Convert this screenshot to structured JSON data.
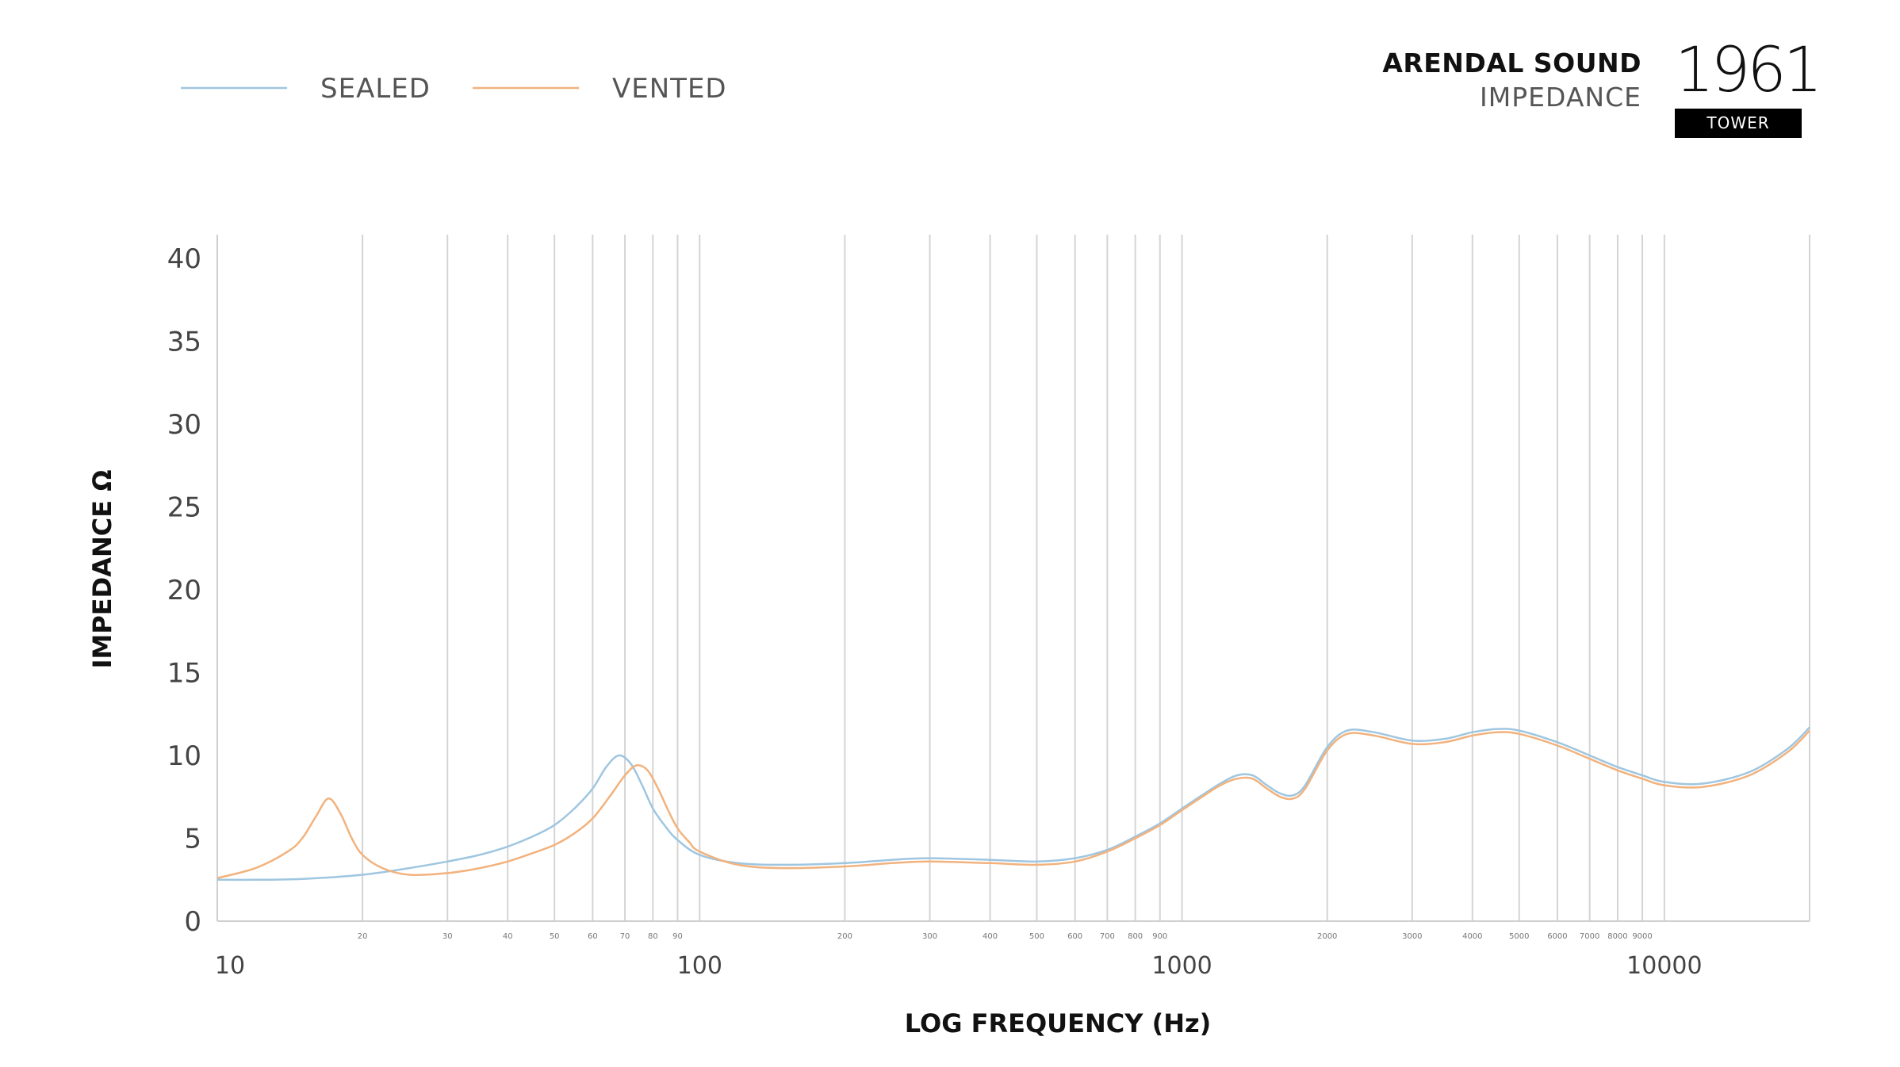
{
  "brand": {
    "name": "ARENDAL SOUND",
    "subtitle": "IMPEDANCE",
    "model": "1961",
    "model_tag": "TOWER"
  },
  "colors": {
    "sealed": "#9fc6e0",
    "vented": "#f2b27d",
    "grid": "#d4d4d4",
    "text": "#333333"
  },
  "chart_data": {
    "type": "line",
    "xlabel": "LOG FREQUENCY (Hz)",
    "ylabel": "IMPEDANCE Ω",
    "xscale": "log",
    "xlim": [
      10,
      20000
    ],
    "ylim": [
      0,
      40
    ],
    "grid": "vertical",
    "legend_position": "top-left",
    "y_ticks": [
      0,
      5,
      10,
      15,
      20,
      25,
      30,
      35,
      40
    ],
    "x_major_ticks": [
      {
        "value": 10,
        "label": "10"
      },
      {
        "value": 100,
        "label": "100"
      },
      {
        "value": 1000,
        "label": "1000"
      },
      {
        "value": 10000,
        "label": "10000"
      }
    ],
    "x_minor_ticks": [
      {
        "value": 20,
        "label": "20"
      },
      {
        "value": 30,
        "label": "30"
      },
      {
        "value": 40,
        "label": "40"
      },
      {
        "value": 50,
        "label": "50"
      },
      {
        "value": 60,
        "label": "60"
      },
      {
        "value": 70,
        "label": "70"
      },
      {
        "value": 80,
        "label": "80"
      },
      {
        "value": 90,
        "label": "90"
      },
      {
        "value": 200,
        "label": "200"
      },
      {
        "value": 300,
        "label": "300"
      },
      {
        "value": 400,
        "label": "400"
      },
      {
        "value": 500,
        "label": "500"
      },
      {
        "value": 600,
        "label": "600"
      },
      {
        "value": 700,
        "label": "700"
      },
      {
        "value": 800,
        "label": "800"
      },
      {
        "value": 900,
        "label": "900"
      },
      {
        "value": 2000,
        "label": "2000"
      },
      {
        "value": 3000,
        "label": "3000"
      },
      {
        "value": 4000,
        "label": "4000"
      },
      {
        "value": 5000,
        "label": "5000"
      },
      {
        "value": 6000,
        "label": "6000"
      },
      {
        "value": 7000,
        "label": "7000"
      },
      {
        "value": 8000,
        "label": "8000"
      },
      {
        "value": 9000,
        "label": "9000"
      }
    ],
    "series": [
      {
        "name": "SEALED",
        "color": "#9fc6e0",
        "points": [
          [
            10,
            2.5
          ],
          [
            12,
            2.5
          ],
          [
            15,
            2.55
          ],
          [
            20,
            2.8
          ],
          [
            25,
            3.2
          ],
          [
            30,
            3.6
          ],
          [
            35,
            4.0
          ],
          [
            40,
            4.5
          ],
          [
            45,
            5.1
          ],
          [
            50,
            5.8
          ],
          [
            55,
            6.8
          ],
          [
            60,
            8.0
          ],
          [
            64,
            9.3
          ],
          [
            68,
            10.0
          ],
          [
            72,
            9.5
          ],
          [
            76,
            8.2
          ],
          [
            80,
            6.8
          ],
          [
            85,
            5.7
          ],
          [
            90,
            4.9
          ],
          [
            100,
            4.0
          ],
          [
            120,
            3.5
          ],
          [
            150,
            3.4
          ],
          [
            200,
            3.5
          ],
          [
            250,
            3.7
          ],
          [
            300,
            3.8
          ],
          [
            400,
            3.7
          ],
          [
            500,
            3.6
          ],
          [
            600,
            3.8
          ],
          [
            700,
            4.3
          ],
          [
            800,
            5.1
          ],
          [
            900,
            5.9
          ],
          [
            1000,
            6.8
          ],
          [
            1100,
            7.6
          ],
          [
            1200,
            8.3
          ],
          [
            1300,
            8.8
          ],
          [
            1400,
            8.8
          ],
          [
            1500,
            8.2
          ],
          [
            1600,
            7.7
          ],
          [
            1700,
            7.6
          ],
          [
            1800,
            8.2
          ],
          [
            2000,
            10.5
          ],
          [
            2200,
            11.5
          ],
          [
            2500,
            11.4
          ],
          [
            3000,
            10.9
          ],
          [
            3500,
            11.0
          ],
          [
            4000,
            11.4
          ],
          [
            4500,
            11.6
          ],
          [
            5000,
            11.5
          ],
          [
            6000,
            10.8
          ],
          [
            7000,
            10.0
          ],
          [
            8000,
            9.3
          ],
          [
            9000,
            8.8
          ],
          [
            10000,
            8.4
          ],
          [
            12000,
            8.3
          ],
          [
            15000,
            9.0
          ],
          [
            18000,
            10.4
          ],
          [
            20000,
            11.7
          ]
        ]
      },
      {
        "name": "VENTED",
        "color": "#f2b27d",
        "points": [
          [
            10,
            2.6
          ],
          [
            12,
            3.2
          ],
          [
            14,
            4.2
          ],
          [
            15,
            5.0
          ],
          [
            16,
            6.3
          ],
          [
            17,
            7.4
          ],
          [
            18,
            6.5
          ],
          [
            19,
            5.0
          ],
          [
            20,
            4.0
          ],
          [
            22,
            3.2
          ],
          [
            25,
            2.8
          ],
          [
            30,
            2.9
          ],
          [
            35,
            3.2
          ],
          [
            40,
            3.6
          ],
          [
            45,
            4.1
          ],
          [
            50,
            4.6
          ],
          [
            55,
            5.3
          ],
          [
            60,
            6.2
          ],
          [
            65,
            7.5
          ],
          [
            70,
            8.8
          ],
          [
            74,
            9.4
          ],
          [
            78,
            9.1
          ],
          [
            82,
            8.0
          ],
          [
            86,
            6.7
          ],
          [
            90,
            5.6
          ],
          [
            95,
            4.8
          ],
          [
            100,
            4.2
          ],
          [
            120,
            3.4
          ],
          [
            150,
            3.2
          ],
          [
            200,
            3.3
          ],
          [
            250,
            3.5
          ],
          [
            300,
            3.6
          ],
          [
            400,
            3.5
          ],
          [
            500,
            3.4
          ],
          [
            600,
            3.6
          ],
          [
            700,
            4.2
          ],
          [
            800,
            5.0
          ],
          [
            900,
            5.8
          ],
          [
            1000,
            6.7
          ],
          [
            1100,
            7.5
          ],
          [
            1200,
            8.2
          ],
          [
            1300,
            8.6
          ],
          [
            1400,
            8.6
          ],
          [
            1500,
            8.0
          ],
          [
            1600,
            7.5
          ],
          [
            1700,
            7.4
          ],
          [
            1800,
            8.0
          ],
          [
            2000,
            10.3
          ],
          [
            2200,
            11.3
          ],
          [
            2500,
            11.2
          ],
          [
            3000,
            10.7
          ],
          [
            3500,
            10.8
          ],
          [
            4000,
            11.2
          ],
          [
            4500,
            11.4
          ],
          [
            5000,
            11.3
          ],
          [
            6000,
            10.6
          ],
          [
            7000,
            9.8
          ],
          [
            8000,
            9.1
          ],
          [
            9000,
            8.6
          ],
          [
            10000,
            8.2
          ],
          [
            12000,
            8.1
          ],
          [
            15000,
            8.8
          ],
          [
            18000,
            10.2
          ],
          [
            20000,
            11.5
          ]
        ]
      }
    ]
  }
}
